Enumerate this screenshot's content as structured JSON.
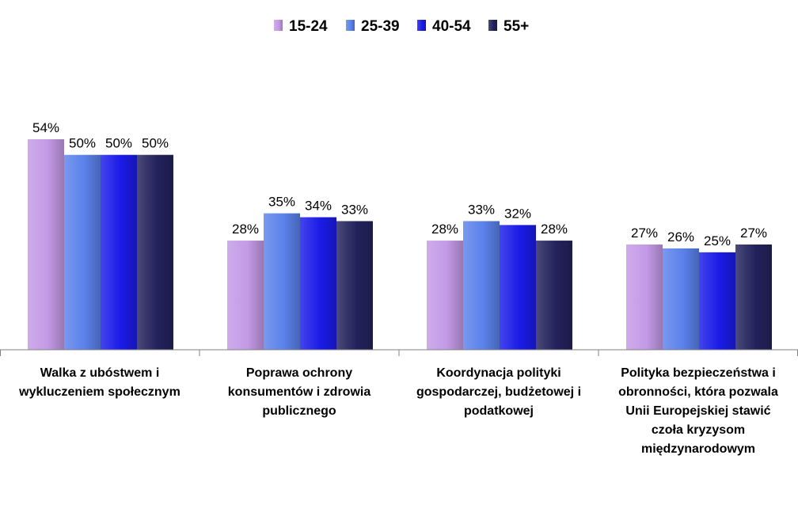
{
  "chart_data": {
    "type": "bar",
    "title": "",
    "xlabel": "",
    "ylabel": "",
    "ylim": [
      0,
      54
    ],
    "grid": false,
    "legend_position": "top-center",
    "categories": [
      [
        "Walka z ubóstwem i",
        "wykluczeniem społecznym"
      ],
      [
        "Poprawa ochrony",
        "konsumentów i zdrowia",
        "publicznego"
      ],
      [
        "Koordynacja polityki",
        "gospodarczej, budżetowej i",
        "podatkowej"
      ],
      [
        "Polityka bezpieczeństwa i",
        "obronności, która pozwala",
        "Unii Europejskiej stawić",
        "czoła kryzysom",
        "międzynarodowym"
      ]
    ],
    "series": [
      {
        "name": "15-24",
        "values": [
          54,
          28,
          28,
          27
        ],
        "labels": [
          "54%",
          "28%",
          "28%",
          "27%"
        ],
        "color": "#c39ae6"
      },
      {
        "name": "25-39",
        "values": [
          50,
          35,
          33,
          26
        ],
        "labels": [
          "50%",
          "35%",
          "33%",
          "26%"
        ],
        "color": "#5b82ea"
      },
      {
        "name": "40-54",
        "values": [
          50,
          34,
          32,
          25
        ],
        "labels": [
          "50%",
          "34%",
          "32%",
          "25%"
        ],
        "color": "#1b1be8"
      },
      {
        "name": "55+",
        "values": [
          50,
          33,
          28,
          27
        ],
        "labels": [
          "50%",
          "33%",
          "28%",
          "27%"
        ],
        "color": "#23225c"
      }
    ]
  }
}
